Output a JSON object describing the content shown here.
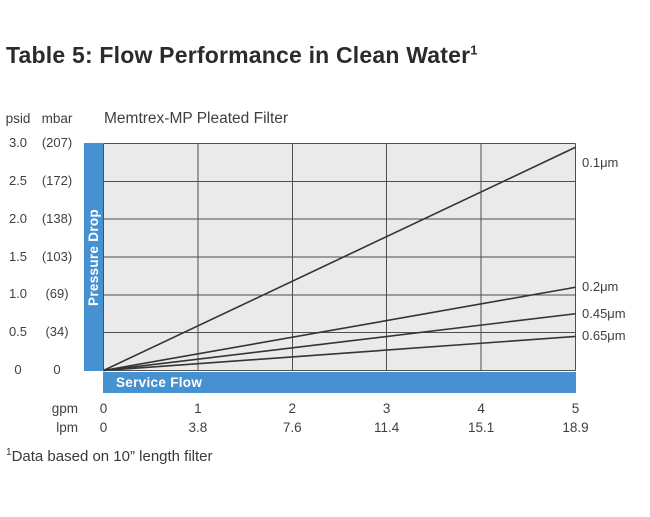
{
  "title": {
    "text": "Table 5: Flow Performance in Clean Water",
    "superscript": "1"
  },
  "footnote": {
    "superscript": "1",
    "text": "Data based on 10” length filter"
  },
  "colors": {
    "accent_blue": "#4691d0",
    "plot_bg": "#eaeaea",
    "grid": "#4f4f4f",
    "line": "#343434",
    "text": "#3f3f3f"
  },
  "chart_data": {
    "type": "line",
    "title": "Memtrex-MP Pleated Filter",
    "ylabel": "Pressure Drop",
    "xlabel": "Service Flow",
    "y_units": [
      "psid",
      "mbar"
    ],
    "x_units": [
      "gpm",
      "lpm"
    ],
    "y_ticks_psid": [
      "3.0",
      "2.5",
      "2.0",
      "1.5",
      "1.0",
      "0.5",
      "0"
    ],
    "y_ticks_mbar": [
      "(207)",
      "(172)",
      "(138)",
      "(103)",
      "(69)",
      "(34)",
      "0"
    ],
    "x_ticks_gpm": [
      "0",
      "1",
      "2",
      "3",
      "4",
      "5"
    ],
    "x_ticks_lpm": [
      "0",
      "3.8",
      "7.6",
      "11.4",
      "15.1",
      "18.9"
    ],
    "xlim": [
      0,
      5
    ],
    "ylim": [
      0,
      3
    ],
    "grid": true,
    "legend_position": "right",
    "series": [
      {
        "name": "0.1μm",
        "x": [
          0,
          5
        ],
        "y": [
          0,
          2.95
        ]
      },
      {
        "name": "0.2μm",
        "x": [
          0,
          5
        ],
        "y": [
          0,
          1.1
        ]
      },
      {
        "name": "0.45μm",
        "x": [
          0,
          5
        ],
        "y": [
          0,
          0.75
        ]
      },
      {
        "name": "0.65μm",
        "x": [
          0,
          5
        ],
        "y": [
          0,
          0.45
        ]
      }
    ]
  }
}
